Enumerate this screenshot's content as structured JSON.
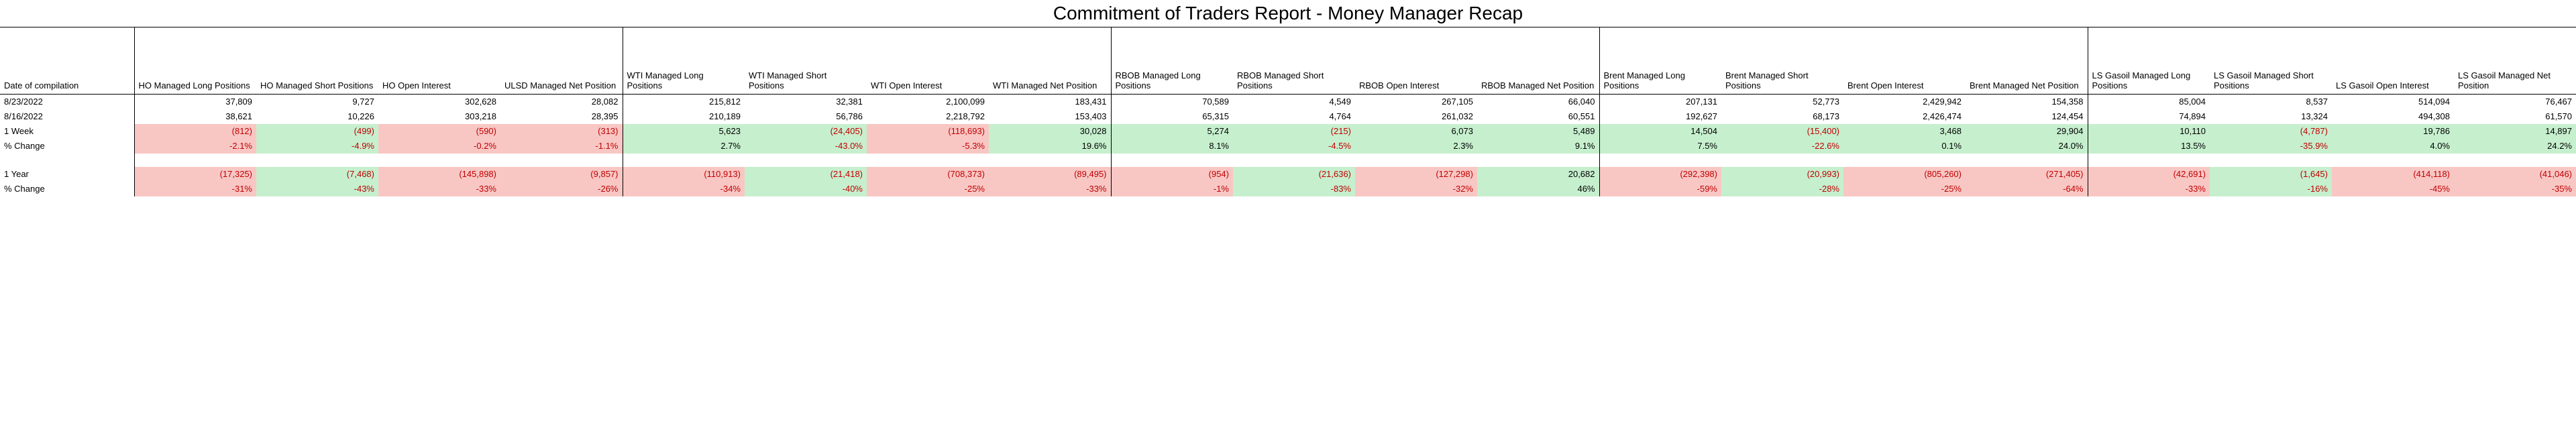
{
  "title": "Commitment of Traders Report - Money Manager Recap",
  "row_labels": {
    "date_header": "Date of compilation",
    "date1": "8/23/2022",
    "date2": "8/16/2022",
    "week": "1 Week",
    "week_pct": "% Change",
    "year": "1 Year",
    "year_pct": "% Change"
  },
  "groups": [
    {
      "headers": [
        "HO Managed Long Positions",
        "HO Managed Short Positions",
        "HO Open Interest",
        "ULSD Managed Net Position"
      ],
      "date1": [
        "37,809",
        "9,727",
        "302,628",
        "28,082"
      ],
      "date2": [
        "38,621",
        "10,226",
        "303,218",
        "28,395"
      ],
      "week": [
        {
          "v": "(812)",
          "neg": true,
          "bg": "red"
        },
        {
          "v": "(499)",
          "neg": true,
          "bg": "green"
        },
        {
          "v": "(590)",
          "neg": true,
          "bg": "red"
        },
        {
          "v": "(313)",
          "neg": true,
          "bg": "red"
        }
      ],
      "week_pct": [
        {
          "v": "-2.1%",
          "neg": true,
          "bg": "red"
        },
        {
          "v": "-4.9%",
          "neg": true,
          "bg": "green"
        },
        {
          "v": "-0.2%",
          "neg": true,
          "bg": "red"
        },
        {
          "v": "-1.1%",
          "neg": true,
          "bg": "red"
        }
      ],
      "year": [
        {
          "v": "(17,325)",
          "neg": true,
          "bg": "red"
        },
        {
          "v": "(7,468)",
          "neg": true,
          "bg": "green"
        },
        {
          "v": "(145,898)",
          "neg": true,
          "bg": "red"
        },
        {
          "v": "(9,857)",
          "neg": true,
          "bg": "red"
        }
      ],
      "year_pct": [
        {
          "v": "-31%",
          "neg": true,
          "bg": "red"
        },
        {
          "v": "-43%",
          "neg": true,
          "bg": "green"
        },
        {
          "v": "-33%",
          "neg": true,
          "bg": "red"
        },
        {
          "v": "-26%",
          "neg": true,
          "bg": "red"
        }
      ]
    },
    {
      "headers": [
        "WTI Managed Long Positions",
        "WTI Managed Short Positions",
        "WTI Open Interest",
        "WTI Managed Net Position"
      ],
      "date1": [
        "215,812",
        "32,381",
        "2,100,099",
        "183,431"
      ],
      "date2": [
        "210,189",
        "56,786",
        "2,218,792",
        "153,403"
      ],
      "week": [
        {
          "v": "5,623",
          "neg": false,
          "bg": "green"
        },
        {
          "v": "(24,405)",
          "neg": true,
          "bg": "green"
        },
        {
          "v": "(118,693)",
          "neg": true,
          "bg": "red"
        },
        {
          "v": "30,028",
          "neg": false,
          "bg": "green"
        }
      ],
      "week_pct": [
        {
          "v": "2.7%",
          "neg": false,
          "bg": "green"
        },
        {
          "v": "-43.0%",
          "neg": true,
          "bg": "green"
        },
        {
          "v": "-5.3%",
          "neg": true,
          "bg": "red"
        },
        {
          "v": "19.6%",
          "neg": false,
          "bg": "green"
        }
      ],
      "year": [
        {
          "v": "(110,913)",
          "neg": true,
          "bg": "red"
        },
        {
          "v": "(21,418)",
          "neg": true,
          "bg": "green"
        },
        {
          "v": "(708,373)",
          "neg": true,
          "bg": "red"
        },
        {
          "v": "(89,495)",
          "neg": true,
          "bg": "red"
        }
      ],
      "year_pct": [
        {
          "v": "-34%",
          "neg": true,
          "bg": "red"
        },
        {
          "v": "-40%",
          "neg": true,
          "bg": "green"
        },
        {
          "v": "-25%",
          "neg": true,
          "bg": "red"
        },
        {
          "v": "-33%",
          "neg": true,
          "bg": "red"
        }
      ]
    },
    {
      "headers": [
        "RBOB Managed Long Positions",
        "RBOB Managed Short Positions",
        "RBOB Open Interest",
        "RBOB Managed Net Position"
      ],
      "date1": [
        "70,589",
        "4,549",
        "267,105",
        "66,040"
      ],
      "date2": [
        "65,315",
        "4,764",
        "261,032",
        "60,551"
      ],
      "week": [
        {
          "v": "5,274",
          "neg": false,
          "bg": "green"
        },
        {
          "v": "(215)",
          "neg": true,
          "bg": "green"
        },
        {
          "v": "6,073",
          "neg": false,
          "bg": "green"
        },
        {
          "v": "5,489",
          "neg": false,
          "bg": "green"
        }
      ],
      "week_pct": [
        {
          "v": "8.1%",
          "neg": false,
          "bg": "green"
        },
        {
          "v": "-4.5%",
          "neg": true,
          "bg": "green"
        },
        {
          "v": "2.3%",
          "neg": false,
          "bg": "green"
        },
        {
          "v": "9.1%",
          "neg": false,
          "bg": "green"
        }
      ],
      "year": [
        {
          "v": "(954)",
          "neg": true,
          "bg": "red"
        },
        {
          "v": "(21,636)",
          "neg": true,
          "bg": "green"
        },
        {
          "v": "(127,298)",
          "neg": true,
          "bg": "red"
        },
        {
          "v": "20,682",
          "neg": false,
          "bg": "green"
        }
      ],
      "year_pct": [
        {
          "v": "-1%",
          "neg": true,
          "bg": "red"
        },
        {
          "v": "-83%",
          "neg": true,
          "bg": "green"
        },
        {
          "v": "-32%",
          "neg": true,
          "bg": "red"
        },
        {
          "v": "46%",
          "neg": false,
          "bg": "green"
        }
      ]
    },
    {
      "headers": [
        "Brent Managed Long Positions",
        "Brent Managed Short Positions",
        "Brent Open Interest",
        "Brent Managed Net Position"
      ],
      "date1": [
        "207,131",
        "52,773",
        "2,429,942",
        "154,358"
      ],
      "date2": [
        "192,627",
        "68,173",
        "2,426,474",
        "124,454"
      ],
      "week": [
        {
          "v": "14,504",
          "neg": false,
          "bg": "green"
        },
        {
          "v": "(15,400)",
          "neg": true,
          "bg": "green"
        },
        {
          "v": "3,468",
          "neg": false,
          "bg": "green"
        },
        {
          "v": "29,904",
          "neg": false,
          "bg": "green"
        }
      ],
      "week_pct": [
        {
          "v": "7.5%",
          "neg": false,
          "bg": "green"
        },
        {
          "v": "-22.6%",
          "neg": true,
          "bg": "green"
        },
        {
          "v": "0.1%",
          "neg": false,
          "bg": "green"
        },
        {
          "v": "24.0%",
          "neg": false,
          "bg": "green"
        }
      ],
      "year": [
        {
          "v": "(292,398)",
          "neg": true,
          "bg": "red"
        },
        {
          "v": "(20,993)",
          "neg": true,
          "bg": "green"
        },
        {
          "v": "(805,260)",
          "neg": true,
          "bg": "red"
        },
        {
          "v": "(271,405)",
          "neg": true,
          "bg": "red"
        }
      ],
      "year_pct": [
        {
          "v": "-59%",
          "neg": true,
          "bg": "red"
        },
        {
          "v": "-28%",
          "neg": true,
          "bg": "green"
        },
        {
          "v": "-25%",
          "neg": true,
          "bg": "red"
        },
        {
          "v": "-64%",
          "neg": true,
          "bg": "red"
        }
      ]
    },
    {
      "headers": [
        "LS Gasoil Managed Long Positions",
        "LS Gasoil Managed Short Positions",
        "LS Gasoil Open Interest",
        "LS Gasoil Managed Net Position"
      ],
      "date1": [
        "85,004",
        "8,537",
        "514,094",
        "76,467"
      ],
      "date2": [
        "74,894",
        "13,324",
        "494,308",
        "61,570"
      ],
      "week": [
        {
          "v": "10,110",
          "neg": false,
          "bg": "green"
        },
        {
          "v": "(4,787)",
          "neg": true,
          "bg": "green"
        },
        {
          "v": "19,786",
          "neg": false,
          "bg": "green"
        },
        {
          "v": "14,897",
          "neg": false,
          "bg": "green"
        }
      ],
      "week_pct": [
        {
          "v": "13.5%",
          "neg": false,
          "bg": "green"
        },
        {
          "v": "-35.9%",
          "neg": true,
          "bg": "green"
        },
        {
          "v": "4.0%",
          "neg": false,
          "bg": "green"
        },
        {
          "v": "24.2%",
          "neg": false,
          "bg": "green"
        }
      ],
      "year": [
        {
          "v": "(42,691)",
          "neg": true,
          "bg": "red"
        },
        {
          "v": "(1,645)",
          "neg": true,
          "bg": "green"
        },
        {
          "v": "(414,118)",
          "neg": true,
          "bg": "red"
        },
        {
          "v": "(41,046)",
          "neg": true,
          "bg": "red"
        }
      ],
      "year_pct": [
        {
          "v": "-33%",
          "neg": true,
          "bg": "red"
        },
        {
          "v": "-16%",
          "neg": true,
          "bg": "green"
        },
        {
          "v": "-45%",
          "neg": true,
          "bg": "red"
        },
        {
          "v": "-35%",
          "neg": true,
          "bg": "red"
        }
      ]
    }
  ]
}
